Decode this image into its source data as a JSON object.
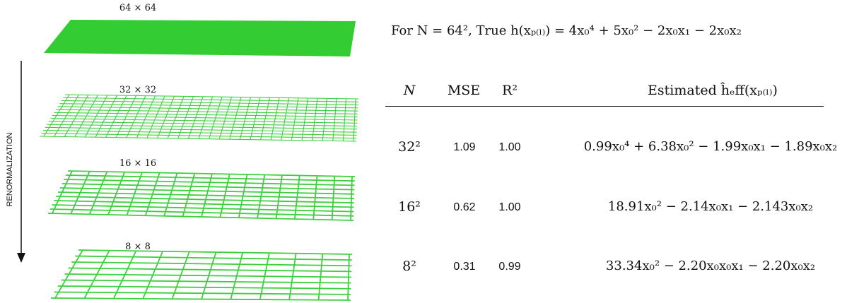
{
  "figure": {
    "layers": [
      "64 × 64",
      "32 × 32",
      "16 × 16",
      "8 × 8"
    ],
    "arrow_label": "RENORMALIZATION",
    "heading": "For N = 64², True h(xₚ₍ₗ₎) = 4x₀⁴ + 5x₀² − 2x₀x₁ − 2x₀x₂",
    "table": {
      "header": [
        "N",
        "MSE",
        "R²",
        "Estimated ĥₑff(xₚ₍ₗ₎)"
      ],
      "rows": [
        [
          "32²",
          "1.09",
          "1.00",
          "0.99x₀⁴ + 6.38x₀² − 1.99x₀x₁ − 1.89x₀x₂"
        ],
        [
          "16²",
          "0.62",
          "1.00",
          "18.91x₀² − 2.14x₀x₁ − 2.143x₀x₂"
        ],
        [
          "8²",
          "0.31",
          "0.99",
          "33.34x₀² − 2.20x₀x₀x₁ − 2.20x₀x₂"
        ]
      ]
    }
  }
}
